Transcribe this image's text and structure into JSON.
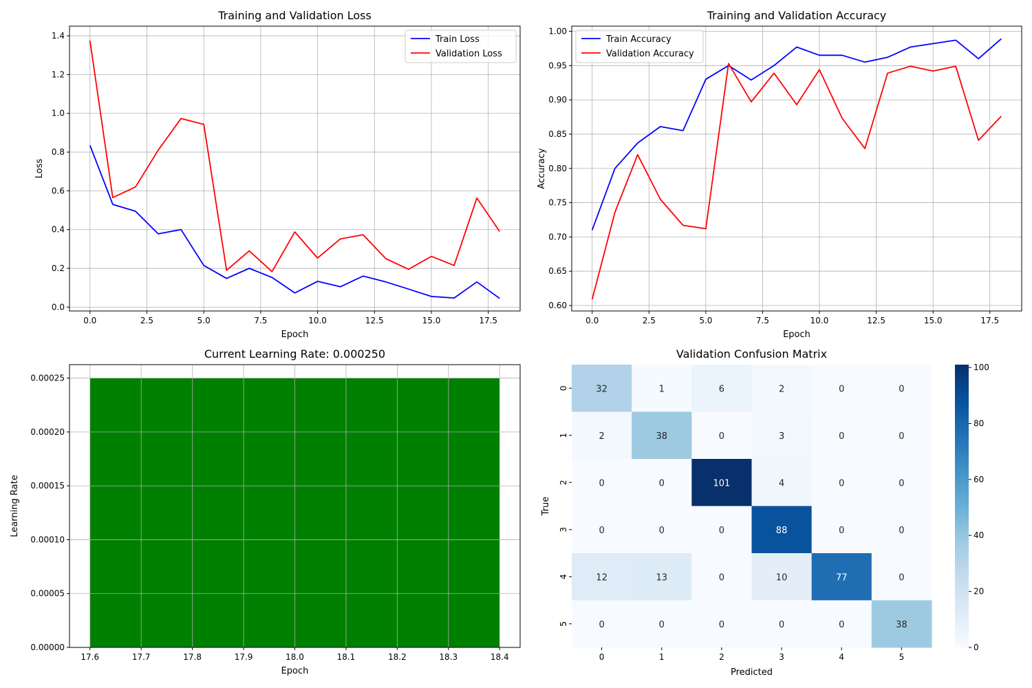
{
  "chart_data": [
    {
      "type": "line",
      "title": "Training and Validation Loss",
      "xlabel": "Epoch",
      "ylabel": "Loss",
      "xlim": [
        -0.9,
        18.9
      ],
      "ylim": [
        -0.02,
        1.45
      ],
      "xticks": [
        0,
        2.5,
        5,
        7.5,
        10,
        12.5,
        15,
        17.5
      ],
      "xtick_labels": [
        "0.0",
        "2.5",
        "5.0",
        "7.5",
        "10.0",
        "12.5",
        "15.0",
        "17.5"
      ],
      "yticks": [
        0,
        0.2,
        0.4,
        0.6,
        0.8,
        1.0,
        1.2,
        1.4
      ],
      "ytick_labels": [
        "0.0",
        "0.2",
        "0.4",
        "0.6",
        "0.8",
        "1.0",
        "1.2",
        "1.4"
      ],
      "grid": true,
      "legend": "upper right",
      "x": [
        0,
        1,
        2,
        3,
        4,
        5,
        6,
        7,
        8,
        9,
        10,
        11,
        12,
        13,
        14,
        15,
        16,
        17,
        18
      ],
      "series": [
        {
          "name": "Train Loss",
          "color": "#0000ff",
          "values": [
            0.835,
            0.53,
            0.495,
            0.378,
            0.4,
            0.215,
            0.148,
            0.2,
            0.153,
            0.073,
            0.133,
            0.105,
            0.16,
            0.13,
            0.093,
            0.055,
            0.047,
            0.13,
            0.045
          ]
        },
        {
          "name": "Validation Loss",
          "color": "#ff0000",
          "values": [
            1.375,
            0.565,
            0.62,
            0.81,
            0.973,
            0.943,
            0.19,
            0.29,
            0.183,
            0.388,
            0.253,
            0.352,
            0.373,
            0.25,
            0.195,
            0.262,
            0.215,
            0.563,
            0.39
          ]
        }
      ]
    },
    {
      "type": "line",
      "title": "Training and Validation Accuracy",
      "xlabel": "Epoch",
      "ylabel": "Accuracy",
      "xlim": [
        -0.9,
        18.9
      ],
      "ylim": [
        0.592,
        1.0075
      ],
      "xticks": [
        0,
        2.5,
        5,
        7.5,
        10,
        12.5,
        15,
        17.5
      ],
      "xtick_labels": [
        "0.0",
        "2.5",
        "5.0",
        "7.5",
        "10.0",
        "12.5",
        "15.0",
        "17.5"
      ],
      "yticks": [
        0.6,
        0.65,
        0.7,
        0.75,
        0.8,
        0.85,
        0.9,
        0.95,
        1.0
      ],
      "ytick_labels": [
        "0.60",
        "0.65",
        "0.70",
        "0.75",
        "0.80",
        "0.85",
        "0.90",
        "0.95",
        "1.00"
      ],
      "grid": true,
      "legend": "upper left",
      "x": [
        0,
        1,
        2,
        3,
        4,
        5,
        6,
        7,
        8,
        9,
        10,
        11,
        12,
        13,
        14,
        15,
        16,
        17,
        18
      ],
      "series": [
        {
          "name": "Train Accuracy",
          "color": "#0000ff",
          "values": [
            0.71,
            0.8,
            0.837,
            0.861,
            0.855,
            0.93,
            0.95,
            0.929,
            0.95,
            0.977,
            0.965,
            0.965,
            0.955,
            0.962,
            0.977,
            0.982,
            0.987,
            0.96,
            0.989
          ]
        },
        {
          "name": "Validation Accuracy",
          "color": "#ff0000",
          "values": [
            0.609,
            0.736,
            0.82,
            0.755,
            0.717,
            0.712,
            0.953,
            0.897,
            0.939,
            0.893,
            0.944,
            0.873,
            0.829,
            0.939,
            0.949,
            0.942,
            0.949,
            0.841,
            0.876
          ]
        }
      ]
    },
    {
      "type": "bar",
      "title": "Current Learning Rate: 0.000250",
      "xlabel": "Epoch",
      "ylabel": "Learning Rate",
      "xlim": [
        17.56,
        18.44
      ],
      "ylim": [
        0,
        0.0002625
      ],
      "xticks": [
        17.6,
        17.7,
        17.8,
        17.9,
        18.0,
        18.1,
        18.2,
        18.3,
        18.4
      ],
      "xtick_labels": [
        "17.6",
        "17.7",
        "17.8",
        "17.9",
        "18.0",
        "18.1",
        "18.2",
        "18.3",
        "18.4"
      ],
      "yticks": [
        0,
        5e-05,
        0.0001,
        0.00015,
        0.0002,
        0.00025
      ],
      "ytick_labels": [
        "0.00000",
        "0.00005",
        "0.00010",
        "0.00015",
        "0.00020",
        "0.00025"
      ],
      "grid": true,
      "categories": [
        18
      ],
      "values": [
        0.00025
      ],
      "bar_range": [
        17.6,
        18.4
      ],
      "color": "#008000"
    },
    {
      "type": "heatmap",
      "title": "Validation Confusion Matrix",
      "xlabel": "Predicted",
      "ylabel": "True",
      "x_labels": [
        "0",
        "1",
        "2",
        "3",
        "4",
        "5"
      ],
      "y_labels": [
        "0",
        "1",
        "2",
        "3",
        "4",
        "5"
      ],
      "matrix": [
        [
          32,
          1,
          6,
          2,
          0,
          0
        ],
        [
          2,
          38,
          0,
          3,
          0,
          0
        ],
        [
          0,
          0,
          101,
          4,
          0,
          0
        ],
        [
          0,
          0,
          0,
          88,
          0,
          0
        ],
        [
          12,
          13,
          0,
          10,
          77,
          0
        ],
        [
          0,
          0,
          0,
          0,
          0,
          38
        ]
      ],
      "colormap": "Blues",
      "colorbar_range": [
        0,
        101
      ],
      "colorbar_ticks": [
        0,
        20,
        40,
        60,
        80,
        100
      ],
      "colorbar_tick_labels": [
        "0",
        "20",
        "40",
        "60",
        "80",
        "100"
      ]
    }
  ]
}
